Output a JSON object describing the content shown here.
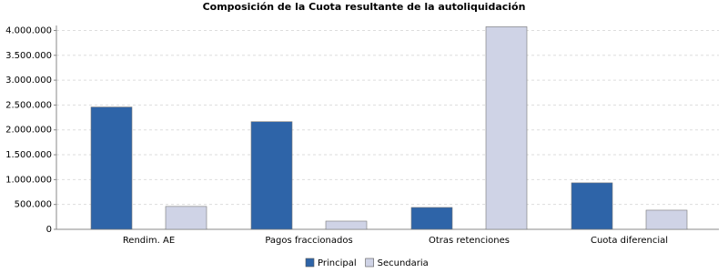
{
  "chart_data": {
    "type": "bar",
    "title": "Composición de la Cuota resultante de la autoliquidación",
    "categories": [
      "Rendim. AE",
      "Pagos fraccionados",
      "Otras retenciones",
      "Cuota diferencial"
    ],
    "series": [
      {
        "name": "Principal",
        "color": "#2e64a8",
        "values": [
          2460000,
          2165000,
          440000,
          935000
        ]
      },
      {
        "name": "Secundaria",
        "color": "#cfd3e6",
        "values": [
          460000,
          165000,
          4075000,
          385000
        ]
      }
    ],
    "ylim": [
      0,
      4100000
    ],
    "yticks": [
      0,
      {
        "value": 500000,
        "label": "500.000"
      },
      {
        "value": 1000000,
        "label": "1.000.000"
      },
      {
        "value": 1500000,
        "label": "1.500.000"
      },
      {
        "value": 2000000,
        "label": "2.000.000"
      },
      {
        "value": 2500000,
        "label": "2.500.000"
      },
      {
        "value": 3000000,
        "label": "3.000.000"
      },
      {
        "value": 3500000,
        "label": "3.500.000"
      },
      {
        "value": 4000000,
        "label": "4.000.000"
      }
    ],
    "grid": true,
    "legend": "bottom"
  }
}
